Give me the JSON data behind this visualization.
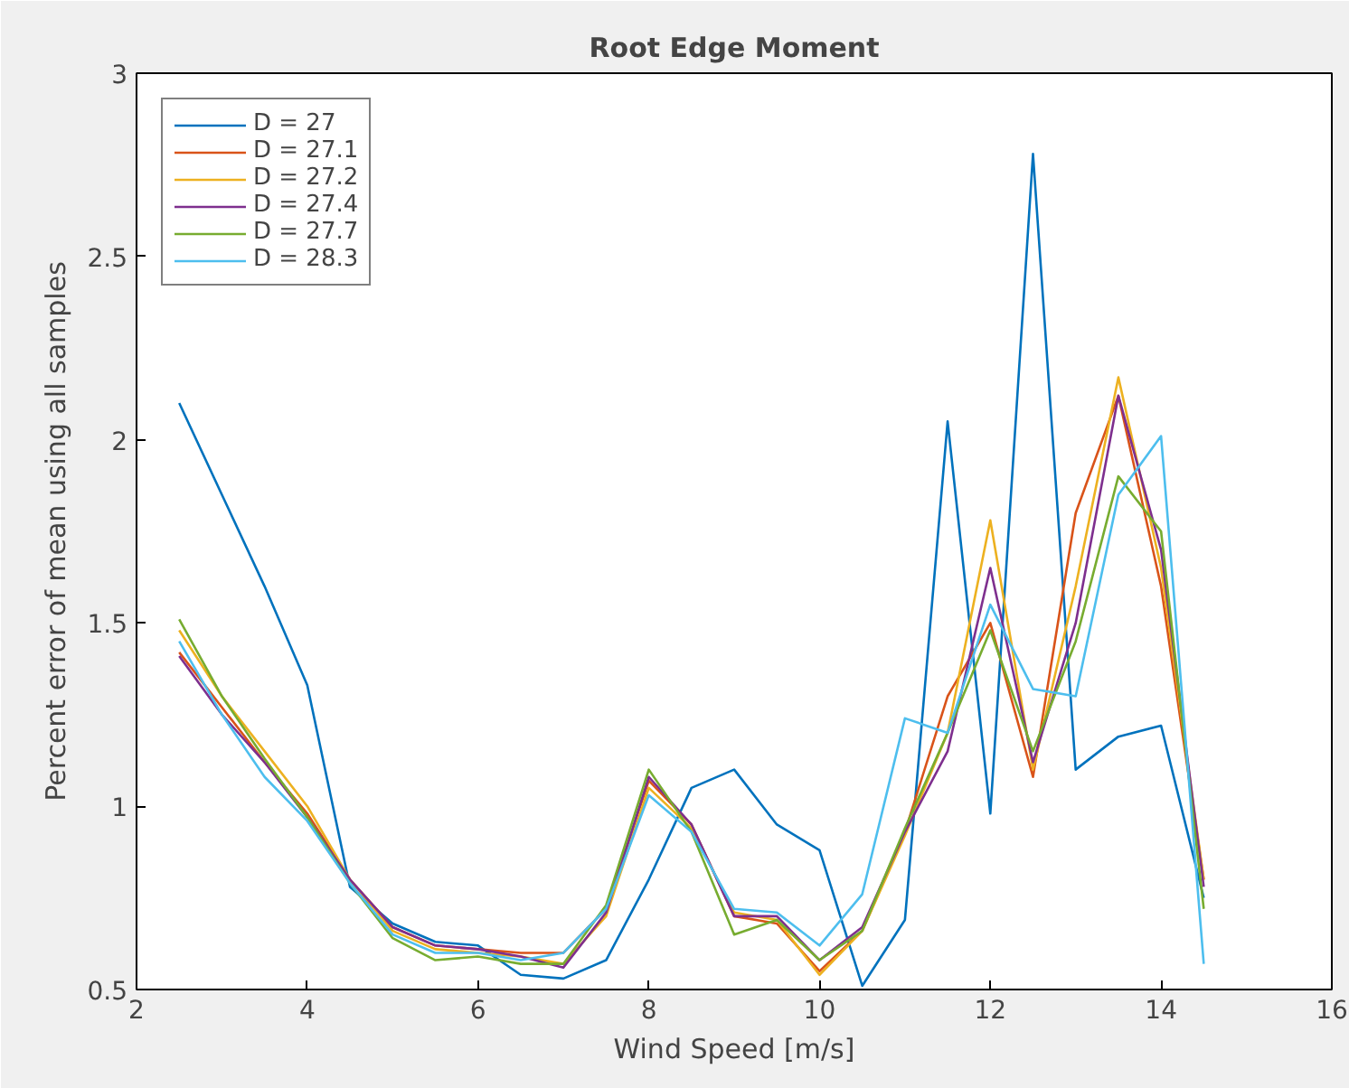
{
  "chart_data": {
    "type": "line",
    "title": "Root Edge Moment",
    "xlabel": "Wind Speed [m/s]",
    "ylabel": "Percent error of mean using all samples",
    "x": [
      2.5,
      3,
      3.5,
      4,
      4.5,
      5,
      5.5,
      6,
      6.5,
      7,
      7.5,
      8,
      8.5,
      9,
      9.5,
      10,
      10.5,
      11,
      11.5,
      12,
      12.5,
      13,
      13.5,
      14,
      14.5
    ],
    "xlim": [
      2,
      16
    ],
    "ylim": [
      0.5,
      3
    ],
    "xticks": [
      2,
      4,
      6,
      8,
      10,
      12,
      14,
      16
    ],
    "yticks": [
      0.5,
      1,
      1.5,
      2,
      2.5,
      3
    ],
    "grid": false,
    "legend": "top left",
    "line_style": "solid",
    "marker": "none",
    "series": [
      {
        "name": "D = 27",
        "color": "#0072bd",
        "values": [
          2.1,
          1.85,
          1.6,
          1.33,
          0.78,
          0.68,
          0.63,
          0.62,
          0.54,
          0.53,
          0.58,
          0.8,
          1.05,
          1.1,
          0.95,
          0.88,
          0.51,
          0.69,
          2.05,
          0.98,
          2.78,
          1.1,
          1.19,
          1.22,
          0.75
        ]
      },
      {
        "name": "D = 27.1",
        "color": "#d95319",
        "values": [
          1.42,
          1.27,
          1.12,
          0.98,
          0.8,
          0.67,
          0.62,
          0.61,
          0.6,
          0.6,
          0.72,
          1.07,
          0.95,
          0.7,
          0.68,
          0.55,
          0.66,
          0.93,
          1.3,
          1.5,
          1.08,
          1.8,
          2.12,
          1.6,
          0.8
        ]
      },
      {
        "name": "D = 27.2",
        "color": "#edb120",
        "values": [
          1.48,
          1.3,
          1.15,
          1.0,
          0.8,
          0.66,
          0.61,
          0.6,
          0.59,
          0.57,
          0.7,
          1.05,
          0.94,
          0.71,
          0.69,
          0.54,
          0.66,
          0.92,
          1.2,
          1.78,
          1.1,
          1.6,
          2.17,
          1.65,
          0.8
        ]
      },
      {
        "name": "D = 27.4",
        "color": "#7e2f8e",
        "values": [
          1.41,
          1.25,
          1.12,
          0.97,
          0.8,
          0.67,
          0.62,
          0.61,
          0.59,
          0.56,
          0.71,
          1.08,
          0.95,
          0.7,
          0.7,
          0.58,
          0.67,
          0.93,
          1.15,
          1.65,
          1.12,
          1.5,
          2.12,
          1.7,
          0.78
        ]
      },
      {
        "name": "D = 27.7",
        "color": "#77ac30",
        "values": [
          1.51,
          1.3,
          1.13,
          0.97,
          0.79,
          0.64,
          0.58,
          0.59,
          0.57,
          0.57,
          0.73,
          1.1,
          0.93,
          0.65,
          0.69,
          0.58,
          0.66,
          0.94,
          1.2,
          1.48,
          1.15,
          1.45,
          1.9,
          1.75,
          0.72
        ]
      },
      {
        "name": "D = 28.3",
        "color": "#4dbeee",
        "values": [
          1.45,
          1.25,
          1.08,
          0.96,
          0.79,
          0.65,
          0.6,
          0.6,
          0.58,
          0.6,
          0.72,
          1.03,
          0.93,
          0.72,
          0.71,
          0.62,
          0.76,
          1.24,
          1.2,
          1.55,
          1.32,
          1.3,
          1.85,
          2.01,
          0.57
        ]
      }
    ]
  }
}
